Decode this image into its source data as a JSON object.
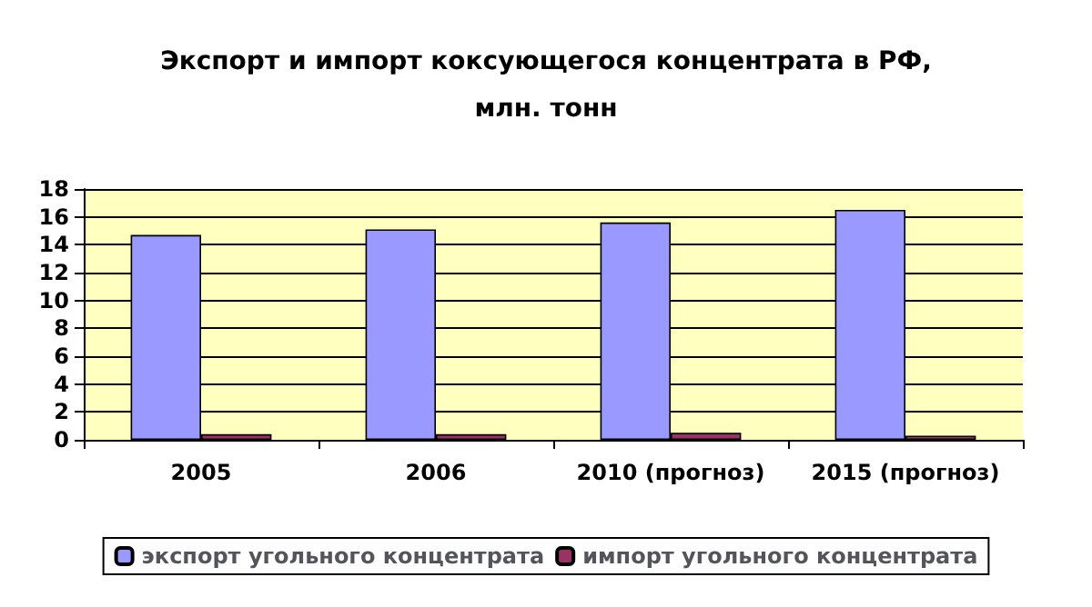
{
  "chart_data": {
    "type": "bar",
    "title": "Экспорт и импорт коксующегося концентрата в РФ,\nмлн. тонн",
    "categories": [
      "2005",
      "2006",
      "2010 (прогноз)",
      "2015 (прогноз)"
    ],
    "series": [
      {
        "name": "экспорт угольного концентрата",
        "color": "#9999ff",
        "values": [
          14.7,
          15.1,
          15.6,
          16.5
        ]
      },
      {
        "name": "импорт угольного концентрата",
        "color": "#993366",
        "values": [
          0.4,
          0.4,
          0.5,
          0.3
        ]
      }
    ],
    "ylim": [
      0,
      18
    ],
    "yticks": [
      0,
      2,
      4,
      6,
      8,
      10,
      12,
      14,
      16,
      18
    ],
    "grid": "y",
    "legend": "bottom"
  }
}
